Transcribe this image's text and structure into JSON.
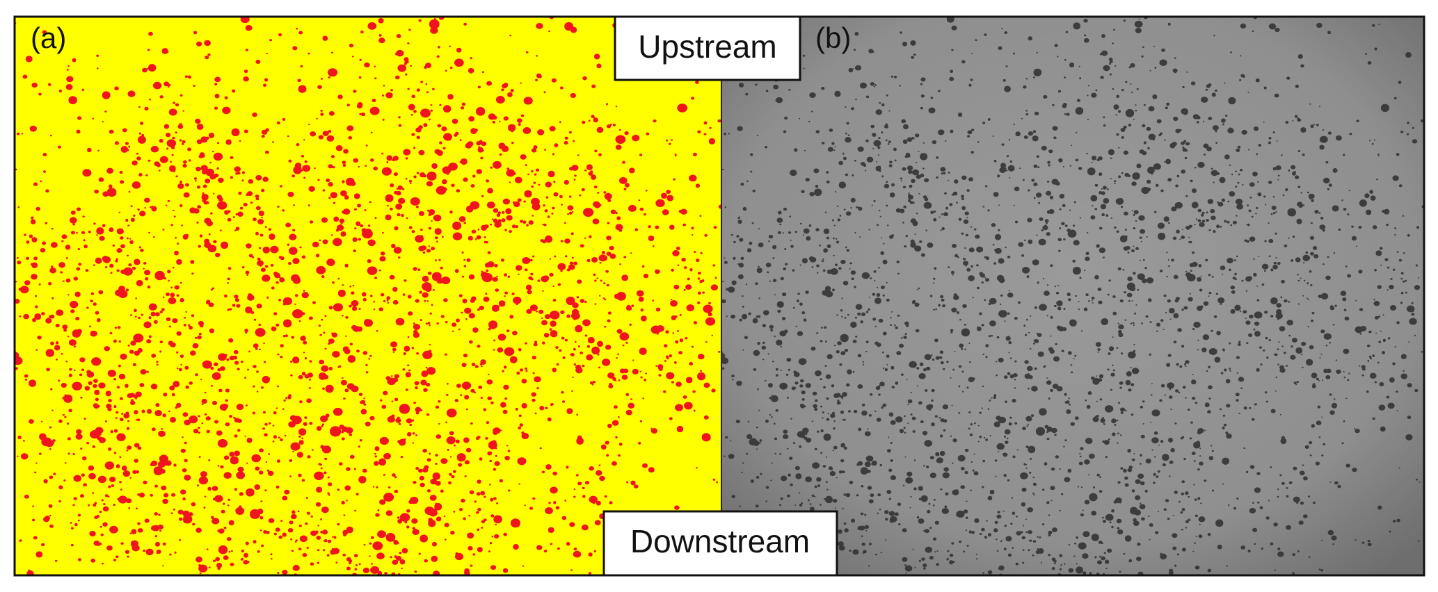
{
  "panels": [
    {
      "label": "(a)"
    },
    {
      "label": "(b)"
    }
  ],
  "annotations": {
    "top": "Upstream",
    "bottom": "Downstream"
  }
}
